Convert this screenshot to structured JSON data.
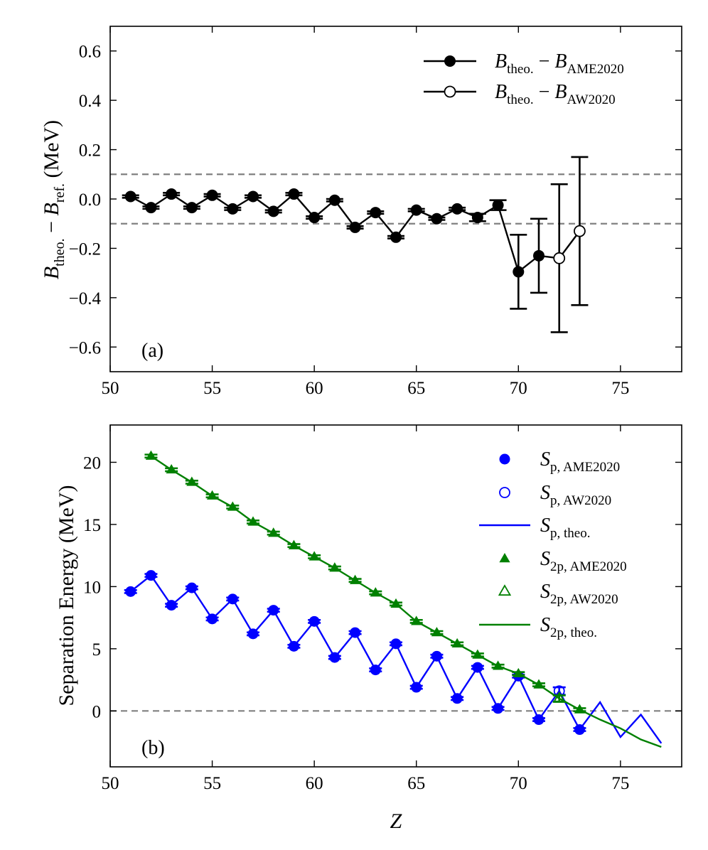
{
  "chart_data": [
    {
      "panel": "a",
      "type": "scatter",
      "panel_label": "(a)",
      "ylabel": "B_theo. − B_ref. (MeV)",
      "ylabel_main": "B",
      "ylabel_sub1": "theo.",
      "ylabel_minus": " − ",
      "ylabel_sub2": "ref.",
      "ylabel_units": "  (MeV)",
      "xlim": [
        50,
        78
      ],
      "ylim": [
        -0.7,
        0.7
      ],
      "xticks": [
        "50",
        "55",
        "60",
        "65",
        "70",
        "75"
      ],
      "yticks": [
        "−0.6",
        "−0.4",
        "−0.2",
        "0.0",
        "0.2",
        "0.4",
        "0.6"
      ],
      "ref_lines": [
        0.1,
        -0.1
      ],
      "series": [
        {
          "name": "B_theo. − B_AME2020",
          "label_sub2": "AME2020",
          "marker": "filled-circle",
          "x": [
            51,
            52,
            53,
            54,
            55,
            56,
            57,
            58,
            59,
            60,
            61,
            62,
            63,
            64,
            65,
            66,
            67,
            68,
            69,
            70,
            71
          ],
          "y": [
            0.01,
            -0.035,
            0.02,
            -0.035,
            0.015,
            -0.04,
            0.01,
            -0.05,
            0.02,
            -0.075,
            -0.005,
            -0.115,
            -0.055,
            -0.155,
            -0.045,
            -0.08,
            -0.04,
            -0.075,
            -0.025,
            -0.295,
            -0.23
          ],
          "err": [
            0.005,
            0.005,
            0.005,
            0.005,
            0.005,
            0.005,
            0.005,
            0.005,
            0.005,
            0.005,
            0.005,
            0.005,
            0.005,
            0.005,
            0.005,
            0.005,
            0.005,
            0.015,
            0.02,
            0.15,
            0.15
          ]
        },
        {
          "name": "B_theo. − B_AW2020",
          "label_sub2": "AW2020",
          "marker": "open-circle",
          "x": [
            72,
            73
          ],
          "y": [
            -0.24,
            -0.13
          ],
          "err": [
            0.3,
            0.3
          ]
        }
      ]
    },
    {
      "panel": "b",
      "type": "line",
      "panel_label": "(b)",
      "xlabel": "Z",
      "ylabel": "Separation Energy (MeV)",
      "xlim": [
        50,
        78
      ],
      "ylim": [
        -4.5,
        23
      ],
      "xticks": [
        "50",
        "55",
        "60",
        "65",
        "70",
        "75"
      ],
      "yticks": [
        "0",
        "5",
        "10",
        "15",
        "20"
      ],
      "ref_lines": [
        0
      ],
      "series": [
        {
          "name": "S_p, AME2020",
          "main": "S",
          "sub": "p, AME2020",
          "color": "#0000ff",
          "marker": "filled-circle",
          "x": [
            51,
            52,
            53,
            54,
            55,
            56,
            57,
            58,
            59,
            60,
            61,
            62,
            63,
            64,
            65,
            66,
            67,
            68,
            69,
            70,
            71,
            73
          ],
          "y": [
            9.6,
            10.9,
            8.5,
            9.9,
            7.4,
            9.0,
            6.2,
            8.1,
            5.2,
            7.2,
            4.3,
            6.3,
            3.3,
            5.4,
            1.9,
            4.4,
            1.0,
            3.5,
            0.2,
            2.8,
            -0.7,
            -1.5
          ]
        },
        {
          "name": "S_p, AW2020",
          "main": "S",
          "sub": "p, AW2020",
          "color": "#0000ff",
          "marker": "open-circle",
          "x": [
            72
          ],
          "y": [
            1.6
          ],
          "err": [
            0.3
          ]
        },
        {
          "name": "S_p, theo.",
          "main": "S",
          "sub": "p, theo.",
          "color": "#0000ff",
          "marker": "line",
          "x": [
            51,
            52,
            53,
            54,
            55,
            56,
            57,
            58,
            59,
            60,
            61,
            62,
            63,
            64,
            65,
            66,
            67,
            68,
            69,
            70,
            71,
            72,
            73,
            74,
            75,
            76,
            77
          ],
          "y": [
            9.6,
            10.9,
            8.5,
            9.9,
            7.4,
            9.0,
            6.2,
            8.1,
            5.2,
            7.2,
            4.3,
            6.3,
            3.3,
            5.4,
            1.9,
            4.4,
            1.0,
            3.5,
            0.2,
            2.8,
            -0.7,
            1.6,
            -1.5,
            0.7,
            -2.1,
            -0.3,
            -2.6
          ]
        },
        {
          "name": "S_2p, AME2020",
          "main": "S",
          "sub": "2p, AME2020",
          "color": "#008000",
          "marker": "filled-triangle",
          "x": [
            52,
            53,
            54,
            55,
            56,
            57,
            58,
            59,
            60,
            61,
            62,
            63,
            64,
            65,
            66,
            67,
            68,
            69,
            70,
            71,
            73
          ],
          "y": [
            20.5,
            19.4,
            18.4,
            17.3,
            16.4,
            15.2,
            14.3,
            13.3,
            12.4,
            11.5,
            10.5,
            9.5,
            8.6,
            7.2,
            6.3,
            5.4,
            4.5,
            3.6,
            3.0,
            2.1,
            0.1
          ]
        },
        {
          "name": "S_2p, AW2020",
          "main": "S",
          "sub": "2p, AW2020",
          "color": "#008000",
          "marker": "open-triangle",
          "x": [
            72
          ],
          "y": [
            1.0
          ],
          "err": [
            0.25
          ]
        },
        {
          "name": "S_2p, theo.",
          "main": "S",
          "sub": "2p, theo.",
          "color": "#008000",
          "marker": "line",
          "x": [
            52,
            53,
            54,
            55,
            56,
            57,
            58,
            59,
            60,
            61,
            62,
            63,
            64,
            65,
            66,
            67,
            68,
            69,
            70,
            71,
            72,
            73,
            74,
            75,
            76,
            77
          ],
          "y": [
            20.5,
            19.4,
            18.4,
            17.3,
            16.4,
            15.2,
            14.3,
            13.3,
            12.4,
            11.5,
            10.5,
            9.5,
            8.6,
            7.2,
            6.3,
            5.4,
            4.5,
            3.6,
            3.0,
            2.1,
            1.0,
            0.1,
            -0.7,
            -1.4,
            -2.3,
            -2.9
          ]
        }
      ]
    }
  ]
}
